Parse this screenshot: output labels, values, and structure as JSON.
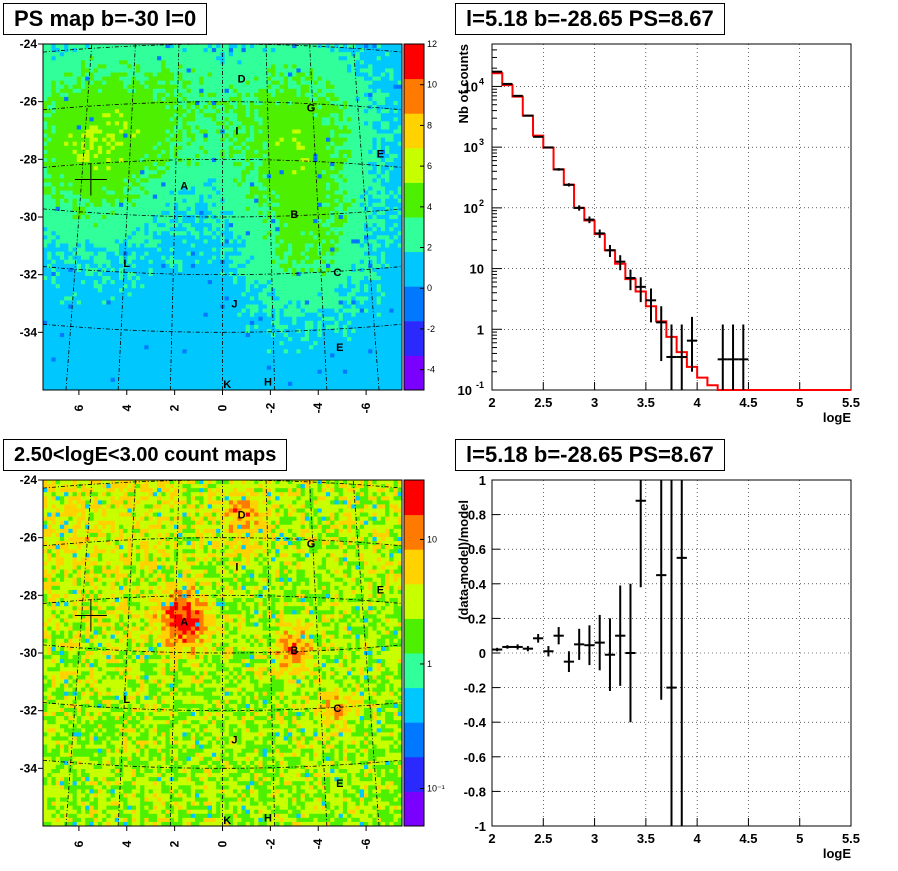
{
  "chart_data": [
    {
      "id": "ps_map",
      "type": "heatmap",
      "title": "PS map b=-30 l=0",
      "x_ticks": [
        "6",
        "4",
        "2",
        "0",
        "-2",
        "-4",
        "-6"
      ],
      "y_ticks": [
        "-24",
        "-26",
        "-28",
        "-30",
        "-32",
        "-34"
      ],
      "xlim": [
        7.5,
        -7.5
      ],
      "ylim": [
        -36,
        -24
      ],
      "colorbar_ticks": [
        "12",
        "10",
        "8",
        "6",
        "4",
        "2",
        "0",
        "-2",
        "-4"
      ],
      "colorbar_range": [
        -5,
        12
      ],
      "colors": [
        "#7a00ff",
        "#2a2aff",
        "#0078ff",
        "#00c8ff",
        "#30ff9a",
        "#4cf000",
        "#c8ff00",
        "#ffd200",
        "#ff7a00",
        "#ff0000"
      ],
      "sources": [
        {
          "label": "A",
          "l": 1.6,
          "b": -28.9
        },
        {
          "label": "B",
          "l": -3.0,
          "b": -29.9
        },
        {
          "label": "C",
          "l": -4.8,
          "b": -31.9
        },
        {
          "label": "D",
          "l": -0.8,
          "b": -25.2
        },
        {
          "label": "E",
          "l": -6.6,
          "b": -27.8
        },
        {
          "label": "E",
          "l": -4.9,
          "b": -34.5
        },
        {
          "label": "G",
          "l": -3.7,
          "b": -26.2
        },
        {
          "label": "H",
          "l": -1.9,
          "b": -35.7
        },
        {
          "label": "I",
          "l": -0.6,
          "b": -27.0
        },
        {
          "label": "J",
          "l": -0.5,
          "b": -33.0
        },
        {
          "label": "K",
          "l": -0.2,
          "b": -35.8
        },
        {
          "label": "L",
          "l": 4.0,
          "b": -31.6
        }
      ],
      "cross": {
        "l": 5.5,
        "b": -28.7
      }
    },
    {
      "id": "counts",
      "type": "line",
      "title": "l=5.18 b=-28.65 PS=8.67",
      "xlabel": "logE",
      "ylabel": "Nb of counts",
      "xlim": [
        2,
        5.5
      ],
      "ylim": [
        0.1,
        50000
      ],
      "log_y": true,
      "x_ticks": [
        "2",
        "2.5",
        "3",
        "3.5",
        "4",
        "4.5",
        "5",
        "5.5"
      ],
      "y_ticks": [
        {
          "value": 0.1,
          "label": "10",
          "exp": "-1"
        },
        {
          "value": 1,
          "label": "1",
          "exp": ""
        },
        {
          "value": 10,
          "label": "10",
          "exp": ""
        },
        {
          "value": 100,
          "label": "10",
          "exp": "2"
        },
        {
          "value": 1000,
          "label": "10",
          "exp": "3"
        },
        {
          "value": 10000,
          "label": "10",
          "exp": "4"
        }
      ],
      "data_points": [
        {
          "x": 2.05,
          "y": 17500,
          "lo": 17370,
          "hi": 17630
        },
        {
          "x": 2.15,
          "y": 11000,
          "lo": 10895,
          "hi": 11105
        },
        {
          "x": 2.25,
          "y": 7000,
          "lo": 6916,
          "hi": 7084
        },
        {
          "x": 2.35,
          "y": 3300,
          "lo": 3243,
          "hi": 3357
        },
        {
          "x": 2.45,
          "y": 1480,
          "lo": 1442,
          "hi": 1518
        },
        {
          "x": 2.55,
          "y": 990,
          "lo": 959,
          "hi": 1021
        },
        {
          "x": 2.65,
          "y": 430,
          "lo": 409,
          "hi": 451
        },
        {
          "x": 2.75,
          "y": 240,
          "lo": 225,
          "hi": 255
        },
        {
          "x": 2.85,
          "y": 100,
          "lo": 90,
          "hi": 110
        },
        {
          "x": 2.95,
          "y": 64,
          "lo": 56,
          "hi": 72
        },
        {
          "x": 3.05,
          "y": 38,
          "lo": 32,
          "hi": 44
        },
        {
          "x": 3.15,
          "y": 20,
          "lo": 15.5,
          "hi": 24.5
        },
        {
          "x": 3.25,
          "y": 13,
          "lo": 9.4,
          "hi": 16.6
        },
        {
          "x": 3.35,
          "y": 7,
          "lo": 4.4,
          "hi": 9.6
        },
        {
          "x": 3.45,
          "y": 5,
          "lo": 2.8,
          "hi": 7.2
        },
        {
          "x": 3.55,
          "y": 3,
          "lo": 1.3,
          "hi": 4.7
        },
        {
          "x": 3.65,
          "y": 1.3,
          "lo": 0.3,
          "hi": 2.4
        },
        {
          "x": 3.75,
          "y": 0.35,
          "lo": 0.1,
          "hi": 1.2
        },
        {
          "x": 3.85,
          "y": 0.35,
          "lo": 0.1,
          "hi": 1.2
        },
        {
          "x": 3.95,
          "y": 0.65,
          "lo": 0.2,
          "hi": 1.6
        },
        {
          "x": 4.25,
          "y": 0.32,
          "lo": 0.1,
          "hi": 1.2
        },
        {
          "x": 4.35,
          "y": 0.32,
          "lo": 0.1,
          "hi": 1.2
        },
        {
          "x": 4.45,
          "y": 0.32,
          "lo": 0.1,
          "hi": 1.2
        }
      ],
      "model_bin_edges": [
        2.0,
        2.1,
        2.2,
        2.3,
        2.4,
        2.5,
        2.6,
        2.7,
        2.8,
        2.9,
        3.0,
        3.1,
        3.2,
        3.3,
        3.4,
        3.5,
        3.6,
        3.7,
        3.8,
        3.9,
        4.0,
        4.1,
        4.2,
        4.3,
        4.4,
        4.5,
        4.6,
        4.7,
        4.8,
        4.9,
        5.0,
        5.1,
        5.2,
        5.3,
        5.4,
        5.5
      ],
      "model_values": [
        16500,
        10500,
        6800,
        3300,
        1550,
        980,
        430,
        240,
        100,
        62,
        37,
        20,
        12,
        6.7,
        4.2,
        2.4,
        1.35,
        0.75,
        0.42,
        0.24,
        0.16,
        0.12,
        0.1,
        0.1,
        0.1,
        0.1,
        0.1,
        0.1,
        0.1,
        0.1,
        0.1,
        0.1,
        0.1,
        0.1,
        0.1
      ]
    },
    {
      "id": "count_map",
      "type": "heatmap",
      "title": "2.50<logE<3.00 count maps",
      "x_ticks": [
        "6",
        "4",
        "2",
        "0",
        "-2",
        "-4",
        "-6"
      ],
      "y_ticks": [
        "-24",
        "-26",
        "-28",
        "-30",
        "-32",
        "-34"
      ],
      "xlim": [
        7.5,
        -7.5
      ],
      "ylim": [
        -36,
        -24
      ],
      "colorbar_ticks": [
        "10",
        "1",
        "10⁻¹"
      ],
      "colorbar_log_values": [
        10,
        1,
        0.1
      ],
      "colorbar_range_log": [
        0.05,
        30
      ],
      "colors": [
        "#7a00ff",
        "#2a2aff",
        "#0078ff",
        "#00c8ff",
        "#30ff9a",
        "#4cf000",
        "#c8ff00",
        "#ffd200",
        "#ff7a00",
        "#ff0000"
      ],
      "sources": [
        {
          "label": "A",
          "l": 1.6,
          "b": -28.9
        },
        {
          "label": "B",
          "l": -3.0,
          "b": -29.9
        },
        {
          "label": "C",
          "l": -4.8,
          "b": -31.9
        },
        {
          "label": "D",
          "l": -0.8,
          "b": -25.2
        },
        {
          "label": "E",
          "l": -6.6,
          "b": -27.8
        },
        {
          "label": "E",
          "l": -4.9,
          "b": -34.5
        },
        {
          "label": "G",
          "l": -3.7,
          "b": -26.2
        },
        {
          "label": "H",
          "l": -1.9,
          "b": -35.7
        },
        {
          "label": "I",
          "l": -0.6,
          "b": -27.0
        },
        {
          "label": "J",
          "l": -0.5,
          "b": -33.0
        },
        {
          "label": "K",
          "l": -0.2,
          "b": -35.8
        },
        {
          "label": "L",
          "l": 4.0,
          "b": -31.6
        }
      ],
      "cross": {
        "l": 5.5,
        "b": -28.7
      }
    },
    {
      "id": "residuals",
      "type": "scatter",
      "title": "l=5.18 b=-28.65 PS=8.67",
      "xlabel": "logE",
      "ylabel": "(data-model)/model",
      "xlim": [
        2,
        5.5
      ],
      "ylim": [
        -1,
        1
      ],
      "x_ticks": [
        "2",
        "2.5",
        "3",
        "3.5",
        "4",
        "4.5",
        "5",
        "5.5"
      ],
      "y_ticks": [
        "-1",
        "-0.8",
        "-0.6",
        "-0.4",
        "-0.2",
        "0",
        "0.2",
        "0.4",
        "0.6",
        "0.8",
        "1"
      ],
      "points": [
        {
          "x": 2.05,
          "y": 0.02,
          "lo": 0.01,
          "hi": 0.03
        },
        {
          "x": 2.15,
          "y": 0.035,
          "lo": 0.025,
          "hi": 0.045
        },
        {
          "x": 2.25,
          "y": 0.035,
          "lo": 0.02,
          "hi": 0.05
        },
        {
          "x": 2.35,
          "y": 0.025,
          "lo": 0.01,
          "hi": 0.04
        },
        {
          "x": 2.45,
          "y": 0.085,
          "lo": 0.06,
          "hi": 0.11
        },
        {
          "x": 2.55,
          "y": 0.01,
          "lo": -0.02,
          "hi": 0.04
        },
        {
          "x": 2.65,
          "y": 0.1,
          "lo": 0.05,
          "hi": 0.15
        },
        {
          "x": 2.75,
          "y": -0.05,
          "lo": -0.11,
          "hi": 0.01
        },
        {
          "x": 2.85,
          "y": 0.05,
          "lo": -0.04,
          "hi": 0.14
        },
        {
          "x": 2.95,
          "y": 0.045,
          "lo": -0.07,
          "hi": 0.16
        },
        {
          "x": 3.05,
          "y": 0.06,
          "lo": -0.1,
          "hi": 0.22
        },
        {
          "x": 3.15,
          "y": -0.01,
          "lo": -0.22,
          "hi": 0.2
        },
        {
          "x": 3.25,
          "y": 0.1,
          "lo": -0.19,
          "hi": 0.39
        },
        {
          "x": 3.35,
          "y": 0.0,
          "lo": -0.4,
          "hi": 0.4
        },
        {
          "x": 3.45,
          "y": 0.88,
          "lo": 0.38,
          "hi": 1.4
        },
        {
          "x": 3.65,
          "y": 0.45,
          "lo": -0.27,
          "hi": 1.2
        },
        {
          "x": 3.75,
          "y": -0.2,
          "lo": -1.0,
          "hi": 1.0
        },
        {
          "x": 3.85,
          "y": 0.55,
          "lo": -1.0,
          "hi": 1.4
        }
      ]
    }
  ]
}
